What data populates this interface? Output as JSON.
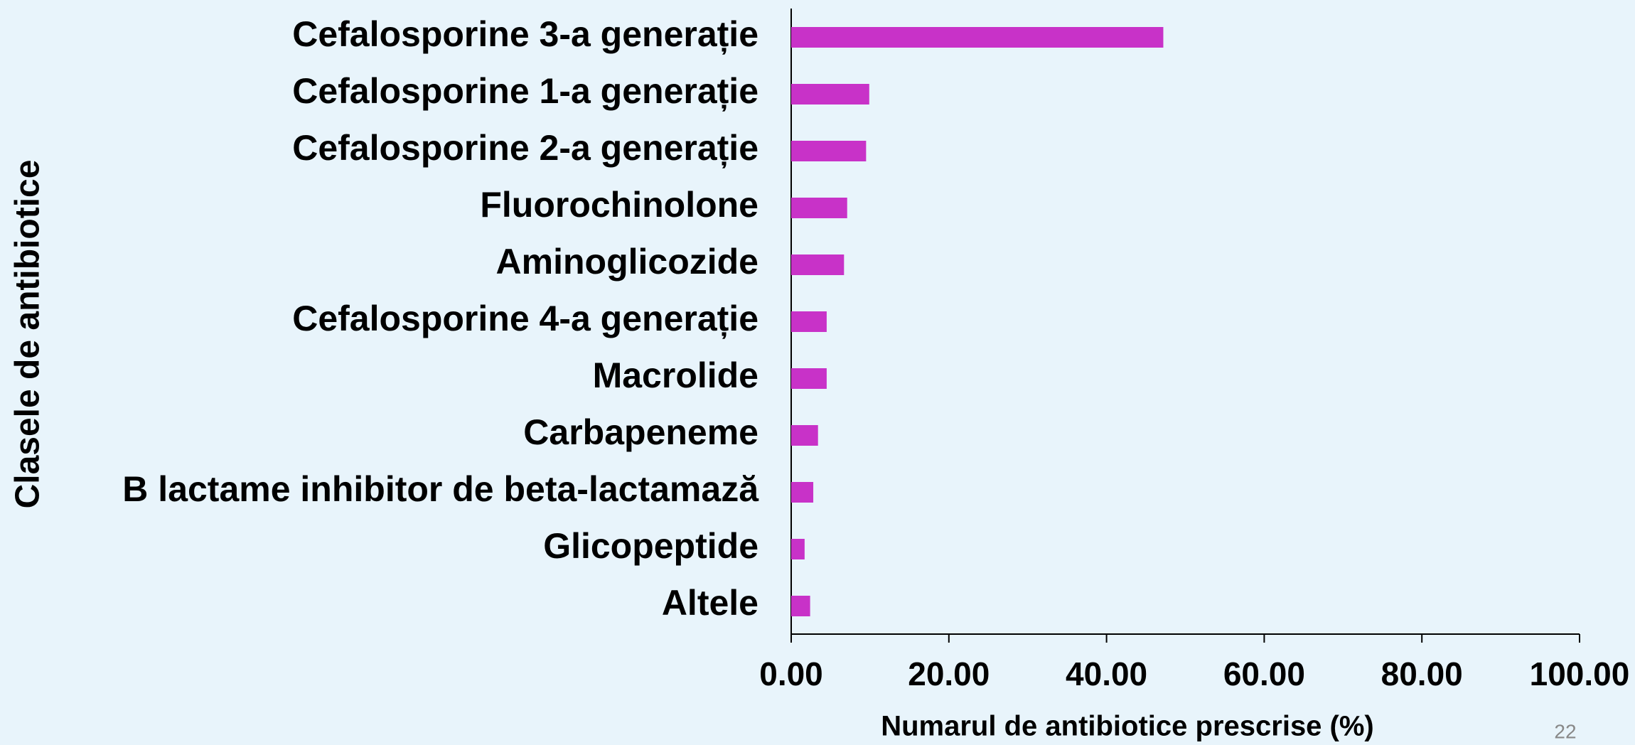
{
  "chart_data": {
    "type": "barh",
    "categories": [
      "Cefalosporine 3-a generație",
      "Cefalosporine 1-a generație",
      "Cefalosporine 2-a generație",
      "Fluorochinolone",
      "Aminoglicozide",
      "Cefalosporine 4-a generație",
      "Macrolide",
      "Carbapeneme",
      "B lactame inhibitor de beta-lactamază",
      "Glicopeptide",
      "Altele"
    ],
    "values": [
      47.2,
      9.9,
      9.5,
      7.1,
      6.7,
      4.5,
      4.5,
      3.4,
      2.8,
      1.7,
      2.4
    ],
    "color": "#c832c8",
    "xlabel": "Numarul de antibiotice prescrise (%)",
    "ylabel": "Clasele de antibiotice",
    "xlim": [
      0,
      100
    ],
    "xticks": [
      {
        "value": 0,
        "label": "0.00"
      },
      {
        "value": 20,
        "label": "20.00"
      },
      {
        "value": 40,
        "label": "40.00"
      },
      {
        "value": 60,
        "label": "60.00"
      },
      {
        "value": 80,
        "label": "80.00"
      },
      {
        "value": 100,
        "label": "100.00"
      }
    ],
    "grid": false
  },
  "page_number": "22"
}
